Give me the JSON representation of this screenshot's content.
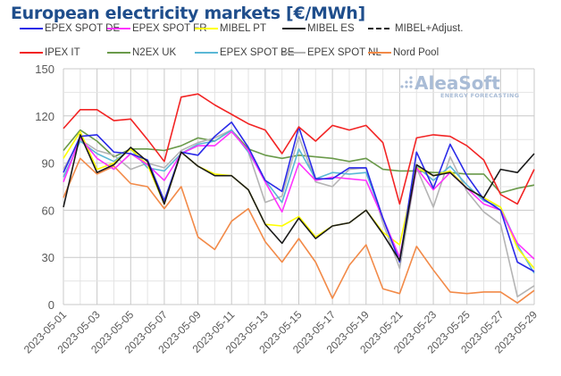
{
  "chart_data": {
    "type": "line",
    "title": "European electricity markets [€/MWh]",
    "xlabel": "",
    "ylabel": "",
    "ylim": [
      0,
      150
    ],
    "yticks": [
      0,
      30,
      60,
      90,
      120,
      150
    ],
    "ytick_labels": [
      "0",
      "30",
      "60",
      "90",
      "120",
      "150"
    ],
    "grid": true,
    "legend_position": "top",
    "watermark": {
      "brand": "AleaSoft",
      "tagline": "ENERGY FORECASTING"
    },
    "x": [
      "2023-05-01",
      "2023-05-02",
      "2023-05-03",
      "2023-05-04",
      "2023-05-05",
      "2023-05-06",
      "2023-05-07",
      "2023-05-08",
      "2023-05-09",
      "2023-05-10",
      "2023-05-11",
      "2023-05-12",
      "2023-05-13",
      "2023-05-14",
      "2023-05-15",
      "2023-05-16",
      "2023-05-17",
      "2023-05-18",
      "2023-05-19",
      "2023-05-20",
      "2023-05-21",
      "2023-05-22",
      "2023-05-23",
      "2023-05-24",
      "2023-05-25",
      "2023-05-26",
      "2023-05-27",
      "2023-05-28",
      "2023-05-29"
    ],
    "xtick_labels": [
      "2023-05-01",
      "2023-05-03",
      "2023-05-05",
      "2023-05-07",
      "2023-05-09",
      "2023-05-11",
      "2023-05-13",
      "2023-05-15",
      "2023-05-17",
      "2023-05-19",
      "2023-05-21",
      "2023-05-23",
      "2023-05-25",
      "2023-05-27",
      "2023-05-29"
    ],
    "series": [
      {
        "name": "N2EX UK",
        "color": "#6a9a4a",
        "dashed": false,
        "values": [
          98,
          111,
          104,
          94,
          99,
          99,
          98,
          101,
          106,
          104,
          111,
          99,
          95,
          93,
          95,
          94,
          93,
          91,
          93,
          86,
          85,
          85,
          84,
          84,
          83,
          83,
          71,
          74,
          76
        ]
      },
      {
        "name": "Nord Pool",
        "color": "#f28a48",
        "dashed": false,
        "values": [
          68,
          93,
          83,
          88,
          77,
          75,
          61,
          75,
          43,
          35,
          53,
          61,
          40,
          27,
          42,
          27,
          4,
          25,
          38,
          10,
          7,
          37,
          22,
          8,
          7,
          8,
          8,
          1,
          9
        ]
      },
      {
        "name": "EPEX SPOT NL",
        "color": "#b4b4b4",
        "dashed": false,
        "values": [
          86,
          105,
          98,
          95,
          86,
          90,
          87,
          98,
          103,
          106,
          111,
          97,
          65,
          69,
          107,
          78,
          75,
          86,
          87,
          52,
          23,
          87,
          62,
          94,
          72,
          59,
          51,
          5,
          12
        ]
      },
      {
        "name": "EPEX SPOT BE",
        "color": "#5bb8d6",
        "dashed": false,
        "values": [
          81,
          104,
          96,
          91,
          99,
          87,
          85,
          96,
          102,
          104,
          111,
          97,
          79,
          65,
          99,
          80,
          84,
          83,
          84,
          55,
          28,
          88,
          79,
          88,
          76,
          66,
          62,
          38,
          20
        ]
      },
      {
        "name": "MIBEL PT",
        "color": "#ffff00",
        "dashed": false,
        "values": [
          93,
          110,
          86,
          90,
          99,
          89,
          64,
          97,
          88,
          83,
          82,
          73,
          51,
          50,
          56,
          43,
          50,
          52,
          60,
          46,
          38,
          87,
          82,
          85,
          74,
          68,
          62,
          36,
          23
        ]
      },
      {
        "name": "EPEX SPOT FR",
        "color": "#ff33ff",
        "dashed": false,
        "values": [
          78,
          106,
          93,
          86,
          96,
          89,
          79,
          96,
          101,
          101,
          110,
          98,
          78,
          59,
          90,
          79,
          81,
          80,
          79,
          55,
          30,
          87,
          73,
          84,
          74,
          64,
          60,
          39,
          29
        ]
      },
      {
        "name": "EPEX SPOT DE",
        "color": "#2a2ae8",
        "dashed": false,
        "values": [
          84,
          107,
          108,
          97,
          96,
          92,
          66,
          97,
          95,
          107,
          116,
          100,
          79,
          72,
          113,
          80,
          80,
          87,
          87,
          55,
          27,
          97,
          74,
          102,
          82,
          67,
          60,
          27,
          21
        ]
      },
      {
        "name": "MIBEL ES",
        "color": "#1a1a1a",
        "dashed": false,
        "values": [
          62,
          108,
          84,
          89,
          100,
          91,
          64,
          97,
          88,
          82,
          82,
          73,
          51,
          39,
          55,
          42,
          50,
          52,
          60,
          45,
          28,
          89,
          82,
          84,
          74,
          68,
          86,
          84,
          96
        ]
      },
      {
        "name": "IPEX IT",
        "color": "#f22424",
        "dashed": false,
        "values": [
          112,
          124,
          124,
          117,
          118,
          105,
          91,
          132,
          134,
          127,
          121,
          115,
          111,
          96,
          113,
          104,
          114,
          111,
          114,
          103,
          64,
          106,
          108,
          107,
          101,
          92,
          70,
          64,
          86
        ]
      },
      {
        "name": "MIBEL+Adjust.",
        "color": "#1a1a1a",
        "dashed": true,
        "values": []
      }
    ],
    "legend": [
      {
        "label": "EPEX SPOT DE",
        "color": "#2a2ae8",
        "dashed": false
      },
      {
        "label": "EPEX SPOT FR",
        "color": "#ff33ff",
        "dashed": false
      },
      {
        "label": "MIBEL PT",
        "color": "#ffff00",
        "dashed": false
      },
      {
        "label": "MIBEL ES",
        "color": "#1a1a1a",
        "dashed": false
      },
      {
        "label": "MIBEL+Adjust.",
        "color": "#1a1a1a",
        "dashed": true
      },
      {
        "label": "IPEX IT",
        "color": "#f22424",
        "dashed": false
      },
      {
        "label": "N2EX UK",
        "color": "#6a9a4a",
        "dashed": false
      },
      {
        "label": "EPEX SPOT BE",
        "color": "#5bb8d6",
        "dashed": false
      },
      {
        "label": "EPEX SPOT NL",
        "color": "#b4b4b4",
        "dashed": false
      },
      {
        "label": "Nord Pool",
        "color": "#f28a48",
        "dashed": false
      }
    ]
  }
}
